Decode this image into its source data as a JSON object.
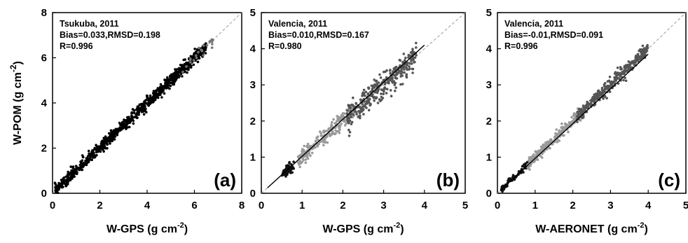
{
  "chart_data": [
    {
      "type": "scatter",
      "panel_label": "(a)",
      "annotation": [
        "Tsukuba, 2011",
        "Bias=0.033,RMSD=0.198",
        "R=0.996"
      ],
      "xlabel_parts": [
        "W-GPS (g cm",
        "-2",
        ")"
      ],
      "ylabel_parts": [
        "W-POM  (g cm",
        "-2",
        ")"
      ],
      "xlim": [
        0,
        8
      ],
      "ylim": [
        0,
        8
      ],
      "xticks": [
        0,
        2,
        4,
        6,
        8
      ],
      "yticks": [
        0,
        2,
        4,
        6,
        8
      ],
      "one_to_one_line": true,
      "series": [
        {
          "color": "#000000",
          "x_range": [
            0.1,
            6.5
          ],
          "count": 900,
          "spread": 0.13
        },
        {
          "color": "#777777",
          "x_range": [
            5.5,
            6.8
          ],
          "count": 25,
          "spread": 0.15
        }
      ],
      "fit_line": null
    },
    {
      "type": "scatter",
      "panel_label": "(b)",
      "annotation": [
        "Valencia, 2011",
        "Bias=0.010,RMSD=0.167",
        "R=0.980"
      ],
      "xlabel_parts": [
        "W-GPS (g cm",
        "-2",
        ")"
      ],
      "xlim": [
        0,
        5
      ],
      "ylim": [
        0,
        5
      ],
      "xticks": [
        0,
        1,
        2,
        3,
        4,
        5
      ],
      "yticks": [
        0,
        1,
        2,
        3,
        4,
        5
      ],
      "one_to_one_line": true,
      "series": [
        {
          "color": "#111111",
          "x_range": [
            0.5,
            0.8
          ],
          "count": 60,
          "spread": 0.07
        },
        {
          "color": "#9a9a9a",
          "x_range": [
            0.9,
            2.3
          ],
          "count": 220,
          "spread": 0.12
        },
        {
          "color": "#555555",
          "x_range": [
            2.1,
            3.8
          ],
          "count": 320,
          "spread": 0.17
        }
      ],
      "fit_line": [
        [
          0.15,
          0.15
        ],
        [
          4.0,
          4.1
        ]
      ]
    },
    {
      "type": "scatter",
      "panel_label": "(c)",
      "annotation": [
        "Valencia, 2011",
        "Bias=-0.01,RMSD=0.091",
        "R=0.996"
      ],
      "xlabel_parts": [
        "W-AERONET (g cm",
        "-2",
        ")"
      ],
      "xlim": [
        0,
        5
      ],
      "ylim": [
        0,
        5
      ],
      "xticks": [
        0,
        1,
        2,
        3,
        4,
        5
      ],
      "yticks": [
        0,
        1,
        2,
        3,
        4,
        5
      ],
      "one_to_one_line": true,
      "series": [
        {
          "color": "#111111",
          "x_range": [
            0.1,
            0.9
          ],
          "count": 90,
          "spread": 0.05
        },
        {
          "color": "#9a9a9a",
          "x_range": [
            0.8,
            2.3
          ],
          "count": 260,
          "spread": 0.08
        },
        {
          "color": "#555555",
          "x_range": [
            2.1,
            4.0
          ],
          "count": 340,
          "spread": 0.09
        }
      ],
      "fit_line": [
        [
          0.1,
          0.1
        ],
        [
          4.0,
          3.85
        ]
      ]
    }
  ]
}
